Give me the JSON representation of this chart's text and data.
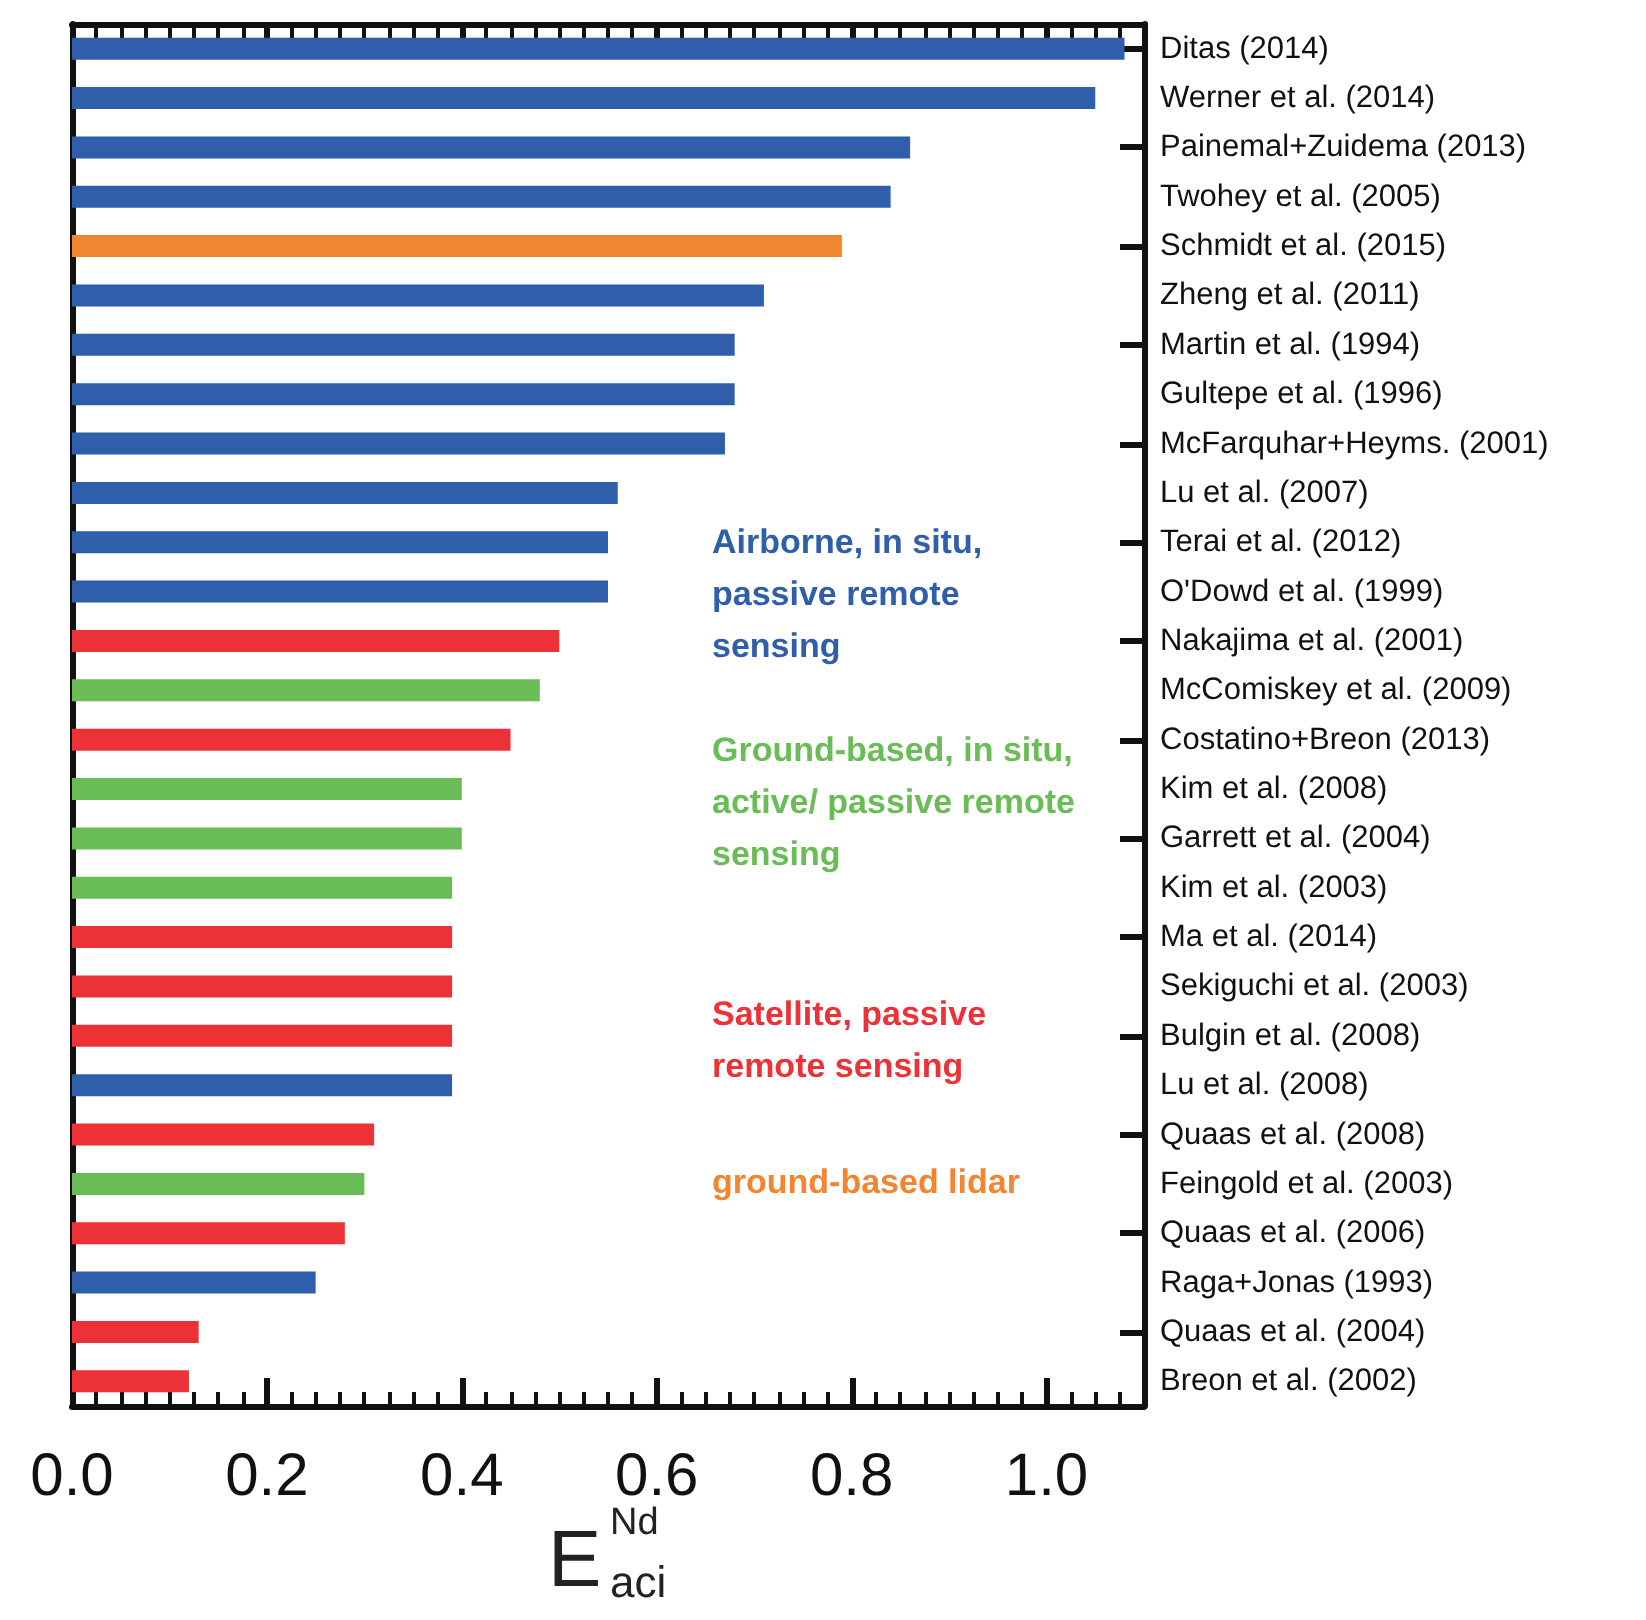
{
  "chart_data": {
    "type": "bar",
    "orientation": "horizontal",
    "xlabel": "E$^{Nd}$$_{aci}$",
    "categories": [
      "Ditas (2014)",
      "Werner et al. (2014)",
      "Painemal+Zuidema (2013)",
      "Twohey et al. (2005)",
      "Schmidt et al. (2015)",
      "Zheng et al. (2011)",
      "Martin et al. (1994)",
      "Gultepe et al. (1996)",
      "McFarquhar+Heyms. (2001)",
      "Lu et al. (2007)",
      "Terai et al. (2012)",
      "O'Dowd et al. (1999)",
      "Nakajima et al. (2001)",
      "McComiskey et al. (2009)",
      "Costatino+Breon (2013)",
      "Kim et al. (2008)",
      "Garrett et al. (2004)",
      "Kim et al. (2003)",
      "Ma et al. (2014)",
      "Sekiguchi et al. (2003)",
      "Bulgin et al. (2008)",
      "Lu et al. (2008)",
      "Quaas et al. (2008)",
      "Feingold et al. (2003)",
      "Quaas et al. (2006)",
      "Raga+Jonas (1993)",
      "Quaas et al. (2004)",
      "Breon et al. (2002)"
    ],
    "series": [
      {
        "name": "Airborne, in situ, passive remote sensing",
        "color": "#2f5eab",
        "values": [
          1.08,
          1.05,
          0.86,
          0.84,
          null,
          0.71,
          0.68,
          0.68,
          0.67,
          0.56,
          0.55,
          0.55,
          null,
          null,
          null,
          null,
          null,
          null,
          null,
          null,
          null,
          0.39,
          null,
          null,
          null,
          0.25,
          null,
          null
        ]
      },
      {
        "name": "Ground-based, in situ, active/ passive remote sensing",
        "color": "#6abd56",
        "values": [
          null,
          null,
          null,
          null,
          null,
          null,
          null,
          null,
          null,
          null,
          null,
          null,
          null,
          0.48,
          null,
          0.4,
          0.4,
          0.39,
          null,
          null,
          null,
          null,
          null,
          0.3,
          null,
          null,
          null,
          null
        ]
      },
      {
        "name": "Satellite, passive remote sensing",
        "color": "#ec3237",
        "values": [
          null,
          null,
          null,
          null,
          null,
          null,
          null,
          null,
          null,
          null,
          null,
          null,
          0.5,
          null,
          0.45,
          null,
          null,
          null,
          0.39,
          0.39,
          0.39,
          null,
          0.31,
          null,
          0.28,
          null,
          0.13,
          0.12
        ]
      },
      {
        "name": "ground-based lidar",
        "color": "#f28530",
        "values": [
          null,
          null,
          null,
          null,
          0.79,
          null,
          null,
          null,
          null,
          null,
          null,
          null,
          null,
          null,
          null,
          null,
          null,
          null,
          null,
          null,
          null,
          null,
          null,
          null,
          null,
          null,
          null,
          null
        ]
      }
    ],
    "xlim": [
      0,
      1.1
    ],
    "xticks": [
      {
        "value": 0,
        "label": "0.0"
      },
      {
        "value": 0.2,
        "label": "0.2"
      },
      {
        "value": 0.4,
        "label": "0.4"
      },
      {
        "value": 0.6,
        "label": "0.6"
      },
      {
        "value": 0.8,
        "label": "0.8"
      },
      {
        "value": 1.0,
        "label": "1.0"
      }
    ],
    "grid": false,
    "legend": "right"
  }
}
